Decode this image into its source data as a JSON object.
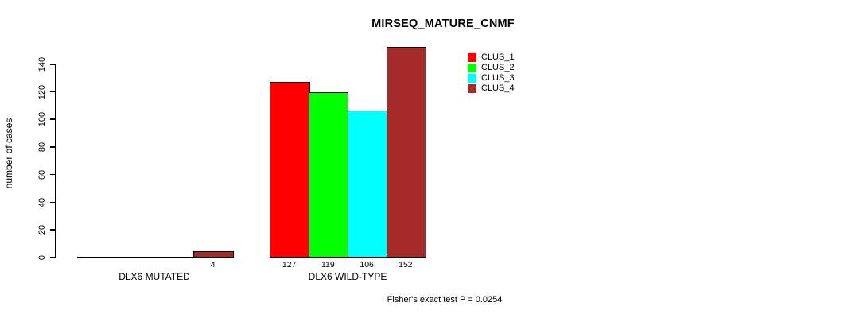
{
  "title": "MIRSEQ_MATURE_CNMF",
  "footer": "Fisher's exact test P = 0.0254",
  "chart_data": {
    "type": "bar",
    "title": "MIRSEQ_MATURE_CNMF",
    "xlabel": "",
    "ylabel": "number of cases",
    "ylim": [
      0,
      152
    ],
    "yticks": [
      0,
      20,
      40,
      60,
      80,
      100,
      120,
      140
    ],
    "grid": false,
    "legend_position": "top-right",
    "categories": [
      "DLX6 MUTATED",
      "DLX6 WILD-TYPE"
    ],
    "series": [
      {
        "name": "CLUS_1",
        "color": "#FF0000",
        "values": [
          0,
          127
        ]
      },
      {
        "name": "CLUS_2",
        "color": "#00FF00",
        "values": [
          0,
          119
        ]
      },
      {
        "name": "CLUS_3",
        "color": "#00FFFF",
        "values": [
          0,
          106
        ]
      },
      {
        "name": "CLUS_4",
        "color": "#A52A2A",
        "values": [
          4,
          152
        ]
      }
    ],
    "bar_labels": [
      [
        "",
        "",
        "",
        "4"
      ],
      [
        "127",
        "119",
        "106",
        "152"
      ]
    ],
    "annotation": "Fisher's exact test P = 0.0254"
  }
}
